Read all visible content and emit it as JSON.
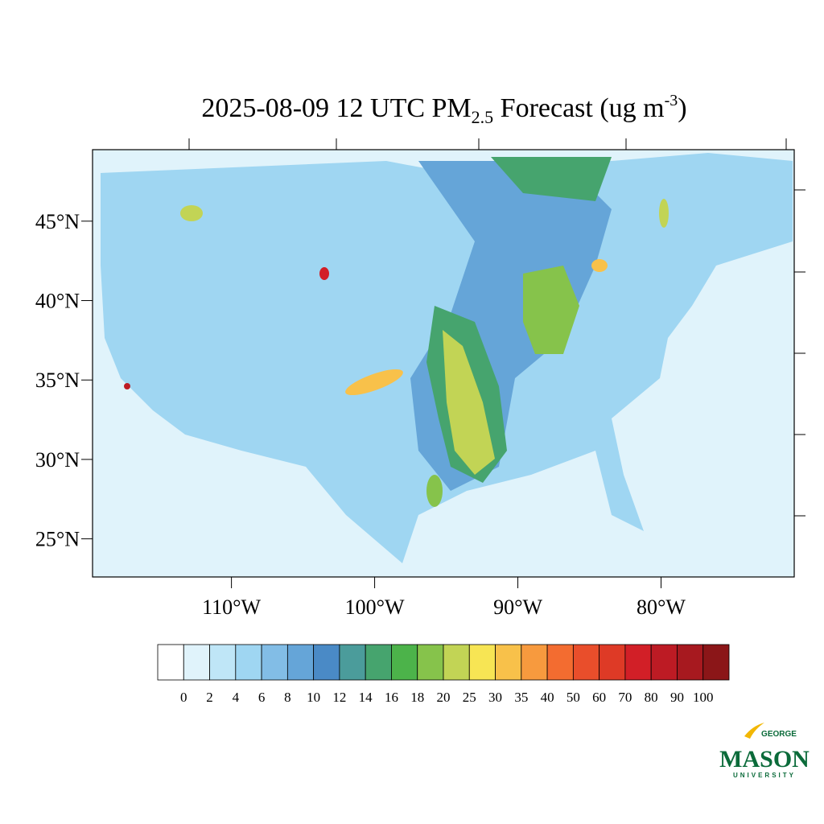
{
  "map": {
    "title": {
      "prefix": "2025-08-09 12 UTC PM",
      "sub": "2.5",
      "middle": " Forecast (ug m",
      "sup": "-3",
      "suffix": ")"
    },
    "lat_range": [
      22.6,
      49.5
    ],
    "lon_range": [
      -119.7,
      -70.7
    ],
    "lat_ticks": [
      {
        "value": 45,
        "label": "45°N"
      },
      {
        "value": 40,
        "label": "40°N"
      },
      {
        "value": 35,
        "label": "35°N"
      },
      {
        "value": 30,
        "label": "30°N"
      },
      {
        "value": 25,
        "label": "25°N"
      }
    ],
    "lon_ticks": [
      {
        "value": -110,
        "label": "110°W"
      },
      {
        "value": -100,
        "label": "100°W"
      },
      {
        "value": -90,
        "label": "90°W"
      },
      {
        "value": -80,
        "label": "80°W"
      }
    ]
  },
  "colorbar": {
    "levels": [
      0,
      2,
      4,
      6,
      8,
      10,
      12,
      14,
      16,
      18,
      20,
      25,
      30,
      35,
      40,
      50,
      60,
      70,
      80,
      90,
      100
    ],
    "colors": [
      "#ffffff",
      "#e0f3fb",
      "#bfe6f7",
      "#9fd6f2",
      "#82bde6",
      "#65a5d8",
      "#4a8ac6",
      "#4b9c9b",
      "#46a46e",
      "#4cb34a",
      "#86c34b",
      "#c2d455",
      "#f7e554",
      "#f8c14a",
      "#f79a3e",
      "#f36c30",
      "#e94e2b",
      "#de3a26",
      "#d21f27",
      "#bd1b24",
      "#a7191f",
      "#8b1618"
    ]
  },
  "logo": {
    "top": "GEORGE",
    "main": "MASON",
    "bottom": "UNIVERSITY"
  }
}
